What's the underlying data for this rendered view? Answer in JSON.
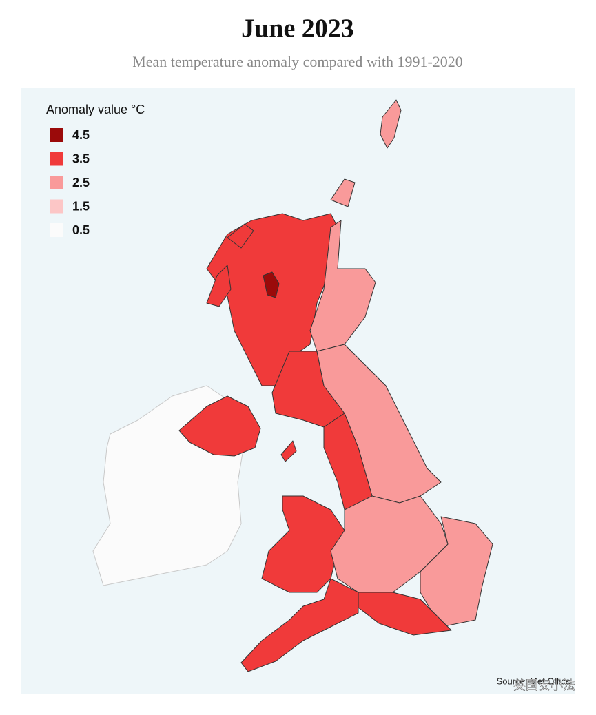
{
  "title": "June 2023",
  "subtitle": "Mean temperature anomaly compared with 1991-2020",
  "legend": {
    "title": "Anomaly value °C",
    "items": [
      {
        "value": 4.5,
        "color": "#9b0a0a"
      },
      {
        "value": 3.5,
        "color": "#f03a3a"
      },
      {
        "value": 2.5,
        "color": "#f99a9a"
      },
      {
        "value": 1.5,
        "color": "#fcc6c6"
      },
      {
        "value": 0.5,
        "color": "#fbfbfb"
      }
    ]
  },
  "source": "Source: Met Office",
  "watermark": "英国安小法"
}
